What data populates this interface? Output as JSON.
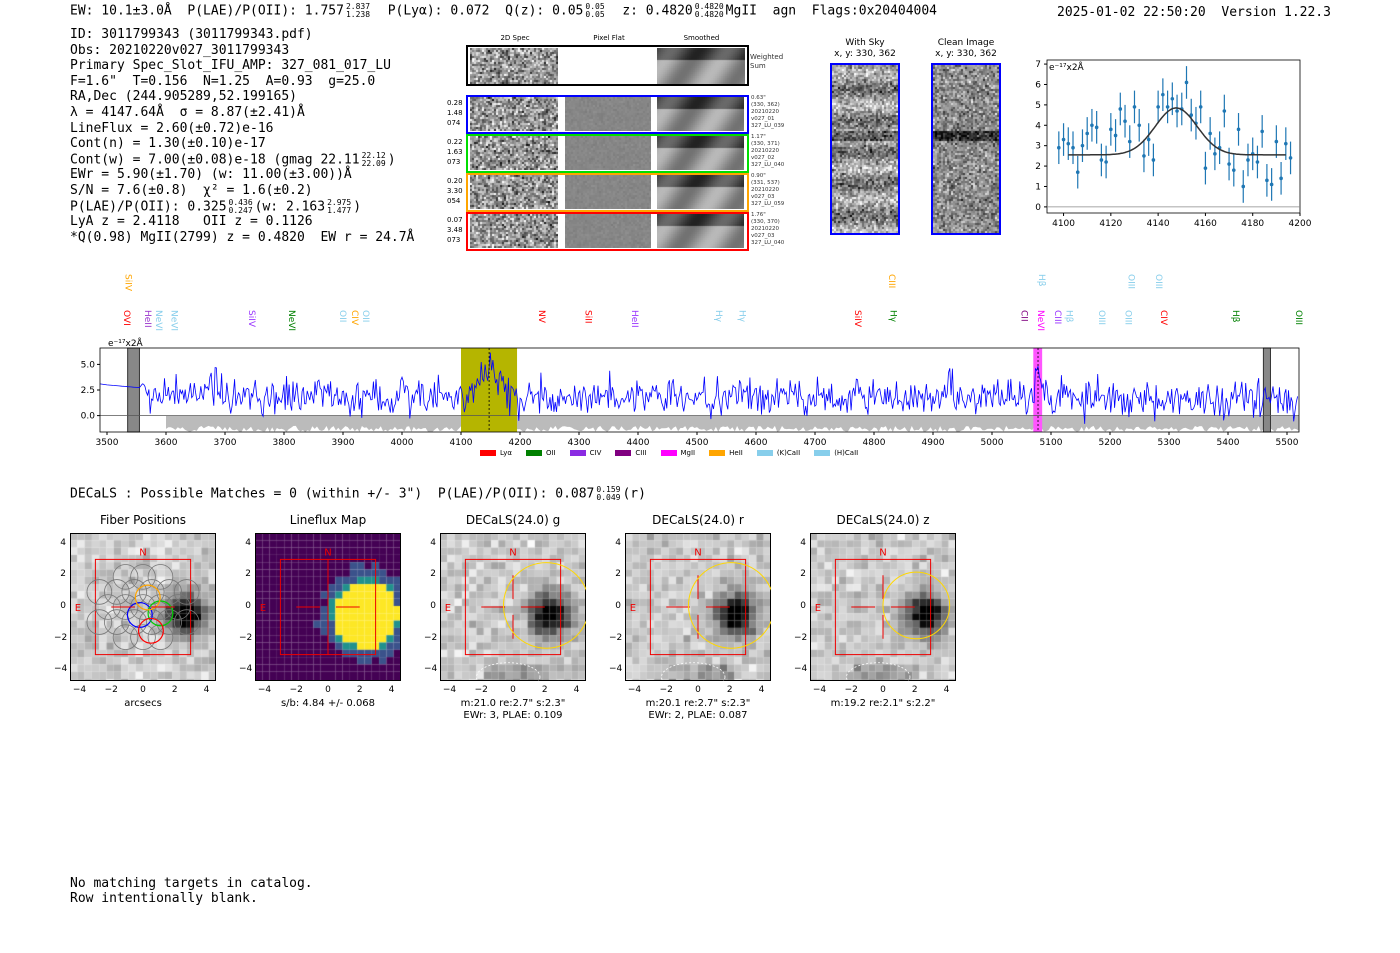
{
  "header": {
    "ew": "EW: 10.1±3.0Å",
    "plae_label": "P(LAE)/P(OII): 1.757",
    "plae_hi": "2.837",
    "plae_lo": "1.238",
    "plya": "P(Lyα): 0.072",
    "qz_label": "Q(z): 0.05",
    "qz_hi": "0.05",
    "qz_lo": "0.05",
    "z_label": "z: 0.4820",
    "z_hi": "0.4820",
    "z_lo": "0.4820",
    "line": "MgII",
    "class": "agn",
    "flags": "Flags:0x20404004",
    "datetime": "2025-01-02 22:50:20",
    "version": "Version 1.22.3"
  },
  "info": {
    "id": "ID: 3011799343 (3011799343.pdf)",
    "obs": "Obs: 20210220v027_3011799343",
    "primary": "Primary Spec_Slot_IFU_AMP: 327_081_017_LU",
    "fit": "F=1.6\"  T=0.156  N=1.25  A=0.93  g=25.0",
    "radec": "RA,Dec (244.905289,52.199165)",
    "lambda": "λ = 4147.64Å  σ = 8.87(±2.41)Å",
    "lineflux": "LineFlux = 2.60(±0.72)e-16",
    "contn": "Cont(n) = 1.30(±0.10)e-17",
    "contw": "Cont(w) = 7.00(±0.08)e-18 (gmag 22.11",
    "gmag_hi": "22.12",
    "gmag_lo": "22.09",
    "contw_end": ")",
    "ewr": "EWr = 5.90(±1.70) (w: 11.00(±3.00))Å",
    "sn": "S/N = 7.6(±0.8)  χ² = 1.6(±0.2)",
    "plae": "P(LAE)/P(OII): 0.325",
    "plae_hi": "0.436",
    "plae_lo": "0.247",
    "plae_w": "(w: 2.163",
    "plae_w_hi": "2.975",
    "plae_w_lo": "1.477",
    "plae_w_end": ")",
    "lya": "LyA z = 2.4118   OII z = 0.1126",
    "q": "*Q(0.98) MgII(2799) z = 0.4820  EW r = 24.7Å"
  },
  "cutouts": {
    "col_headers": [
      "2D Spec",
      "Pixel Flat",
      "Smoothed"
    ],
    "weighted_sum": "Weighted\nSum",
    "rows": [
      {
        "color": "#0000ff",
        "left": "0.28\n1.48\n074",
        "right": "0.63\"\n(330, 362)\n20210220\nv027_01\n327_LU_039"
      },
      {
        "color": "#00dd00",
        "left": "0.22\n1.63\n073",
        "right": "1.17\"\n(330, 371)\n20210220\nv027_02\n327_LU_040"
      },
      {
        "color": "#ffa500",
        "left": "0.20\n3.30\n054",
        "right": "0.90\"\n(331, 537)\n20210220\nv027_03\n327_LU_059"
      },
      {
        "color": "#ff0000",
        "left": "0.07\n3.48\n073",
        "right": "1.76\"\n(330, 370)\n20210220\nv027_03\n327_LU_040"
      }
    ]
  },
  "sky": {
    "with_sky": "With Sky",
    "with_sky_xy": "x, y: 330, 362",
    "clean": "Clean Image",
    "clean_xy": "x, y: 330, 362"
  },
  "zoom_spec": {
    "type": "scatter",
    "units": "e⁻¹⁷x2Å",
    "xlim": [
      4093,
      4200
    ],
    "ylim": [
      -0.3,
      7.2
    ],
    "xticks": [
      "4100",
      "4120",
      "4140",
      "4160",
      "4180",
      "4200"
    ],
    "yticks": [
      "0",
      "1",
      "2",
      "3",
      "4",
      "5",
      "6",
      "7"
    ],
    "x": [
      4098,
      4100,
      4102,
      4104,
      4106,
      4108,
      4110,
      4112,
      4114,
      4116,
      4118,
      4120,
      4122,
      4124,
      4126,
      4128,
      4130,
      4132,
      4134,
      4136,
      4138,
      4140,
      4142,
      4144,
      4146,
      4148,
      4150,
      4152,
      4154,
      4156,
      4158,
      4160,
      4162,
      4164,
      4166,
      4168,
      4170,
      4172,
      4174,
      4176,
      4178,
      4180,
      4182,
      4184,
      4186,
      4188,
      4190,
      4192,
      4194,
      4196
    ],
    "y": [
      2.9,
      3.3,
      3.1,
      2.9,
      1.7,
      3.0,
      3.6,
      4.0,
      3.9,
      2.3,
      2.2,
      3.8,
      3.5,
      4.8,
      4.2,
      3.2,
      4.9,
      4.0,
      2.5,
      3.3,
      2.3,
      4.9,
      5.5,
      4.9,
      5.3,
      4.7,
      4.8,
      6.1,
      4.5,
      4.1,
      4.9,
      1.9,
      3.6,
      2.6,
      2.9,
      4.7,
      2.1,
      1.8,
      3.8,
      1.0,
      2.3,
      2.6,
      2.2,
      3.7,
      1.3,
      1.1,
      3.2,
      1.4,
      3.1,
      2.4
    ],
    "yerr": 0.8,
    "fit": {
      "center": 4147.64,
      "sigma": 8.87,
      "continuum": 2.55,
      "peak": 4.85,
      "range": [
        4102,
        4194
      ]
    }
  },
  "chart_data": {
    "type": "line",
    "units": "e⁻¹⁷x2Å",
    "xlim": [
      3500,
      5520
    ],
    "ylim": [
      -1.6,
      6.6
    ],
    "xticks": [
      "3500",
      "3600",
      "3700",
      "3800",
      "3900",
      "4000",
      "4100",
      "4200",
      "4300",
      "4400",
      "4500",
      "4600",
      "4700",
      "4800",
      "4900",
      "5000",
      "5100",
      "5200",
      "5300",
      "5400",
      "5500"
    ],
    "yticks": [
      "5.0",
      "2.5",
      "0.0"
    ],
    "highlight": [
      4100,
      4195
    ],
    "emission_line": 4147.64,
    "mgii_band": [
      5070,
      5085
    ],
    "masked": [
      [
        3535,
        3555
      ],
      [
        5460,
        5472
      ]
    ],
    "legend": [
      {
        "label": "Lyα",
        "color": "#ff0000"
      },
      {
        "label": "OII",
        "color": "#008000"
      },
      {
        "label": "CIV",
        "color": "#8a2be2"
      },
      {
        "label": "CIII",
        "color": "#800080"
      },
      {
        "label": "MgII",
        "color": "#ff00ff"
      },
      {
        "label": "HeII",
        "color": "#ffa500"
      },
      {
        "label": "(K)CaII",
        "color": "#87ceeb"
      },
      {
        "label": "(H)CaII",
        "color": "#87ceeb"
      }
    ],
    "line_labels": [
      {
        "name": "SiIV",
        "w": 3535,
        "c": "#ffa500",
        "row": 2
      },
      {
        "name": "OVI",
        "w": 3532,
        "c": "#ff0000",
        "row": 1
      },
      {
        "name": "HeII",
        "w": 3568,
        "c": "#9933cc",
        "row": 1
      },
      {
        "name": "NeVI",
        "w": 3585,
        "c": "#87ceeb",
        "row": 1
      },
      {
        "name": "NeVI",
        "w": 3613,
        "c": "#87ceeb",
        "row": 1
      },
      {
        "name": "SiIV",
        "w": 3744,
        "c": "#9933ff",
        "row": 1
      },
      {
        "name": "NeVI",
        "w": 3812,
        "c": "#008000",
        "row": 1
      },
      {
        "name": "OII",
        "w": 3898,
        "c": "#87ceeb",
        "row": 1
      },
      {
        "name": "CIV",
        "w": 3919,
        "c": "#ffa500",
        "row": 1
      },
      {
        "name": "OII",
        "w": 3932,
        "c": "#87ceeb",
        "row": 1
      },
      {
        "name": "NV",
        "w": 4236,
        "c": "#ff0000",
        "row": 1
      },
      {
        "name": "SiII",
        "w": 4314,
        "c": "#ff0000",
        "row": 1
      },
      {
        "name": "HeII",
        "w": 4393,
        "c": "#9933ff",
        "row": 1
      },
      {
        "name": "Hγ",
        "w": 4536,
        "c": "#87ceeb",
        "row": 1
      },
      {
        "name": "Hγ",
        "w": 4575,
        "c": "#87ceeb",
        "row": 1
      },
      {
        "name": "SiIV",
        "w": 4771,
        "c": "#ff0000",
        "row": 1
      },
      {
        "name": "CIII",
        "w": 4829,
        "c": "#ffa500",
        "row": 2
      },
      {
        "name": "Hγ",
        "w": 4831,
        "c": "#008000",
        "row": 1
      },
      {
        "name": "CII",
        "w": 5053,
        "c": "#800080",
        "row": 1
      },
      {
        "name": "NeVI",
        "w": 5081,
        "c": "#ff00ff",
        "row": 1
      },
      {
        "name": "Hβ",
        "w": 5083,
        "c": "#87ceeb",
        "row": 2
      },
      {
        "name": "CIII",
        "w": 5110,
        "c": "#9933ff",
        "row": 1
      },
      {
        "name": "Hβ",
        "w": 5130,
        "c": "#87ceeb",
        "row": 1
      },
      {
        "name": "OIII",
        "w": 5185,
        "c": "#87ceeb",
        "row": 1
      },
      {
        "name": "OIII",
        "w": 5230,
        "c": "#87ceeb",
        "row": 1
      },
      {
        "name": "OIII",
        "w": 5235,
        "c": "#87ceeb",
        "row": 2
      },
      {
        "name": "OIII",
        "w": 5281,
        "c": "#87ceeb",
        "row": 2
      },
      {
        "name": "CIV",
        "w": 5290,
        "c": "#ff0000",
        "row": 1
      },
      {
        "name": "Hβ",
        "w": 5412,
        "c": "#008000",
        "row": 1
      },
      {
        "name": "OIII",
        "w": 5519,
        "c": "#008000",
        "row": 1
      }
    ]
  },
  "decals": {
    "summary": "DECaLS : Possible Matches = 0 (within +/- 3\")  P(LAE)/P(OII): 0.087",
    "hi": "0.159",
    "lo": "0.049",
    "band": "(r)",
    "axis_ticks": [
      "4",
      "2",
      "0",
      "−2",
      "−4"
    ],
    "x_ticks": [
      "−4",
      "−2",
      "0",
      "2",
      "4"
    ],
    "compass_n": "N",
    "compass_e": "E",
    "panels": [
      {
        "title": "Fiber Positions",
        "caption": "arcsecs",
        "caption2": ""
      },
      {
        "title": "Lineflux Map",
        "caption": "s/b: 4.84 +/- 0.068",
        "caption2": ""
      },
      {
        "title": "DECaLS(24.0) g",
        "caption": "m:21.0  re:2.7\"  s:2.3\"",
        "caption2": "EWr: 3, PLAE: 0.109"
      },
      {
        "title": "DECaLS(24.0) r",
        "caption": "m:20.1  re:2.7\"  s:2.3\"",
        "caption2": "EWr: 2, PLAE: 0.087"
      },
      {
        "title": "DECaLS(24.0) z",
        "caption": "m:19.2  re:2.1\"  s:2.2\"",
        "caption2": ""
      }
    ]
  },
  "footer": {
    "line1": "No matching targets in catalog.",
    "line2": "Row intentionally blank."
  }
}
